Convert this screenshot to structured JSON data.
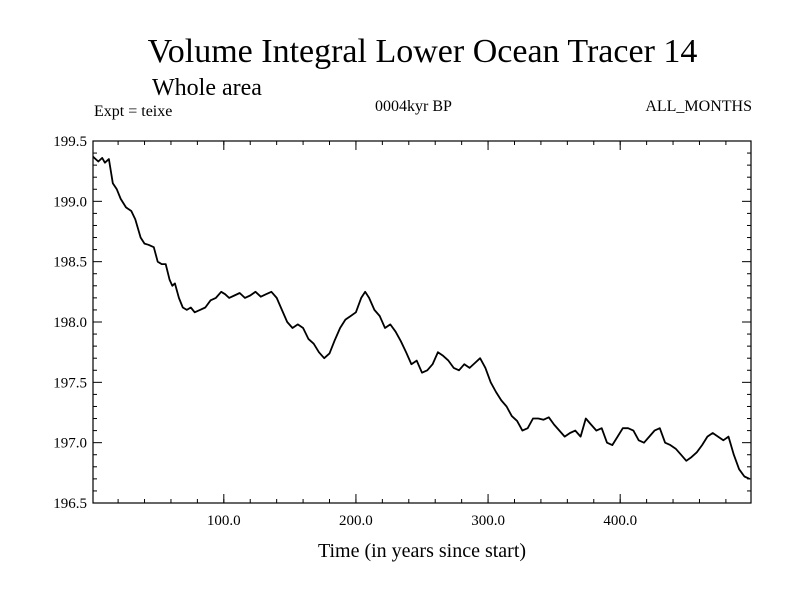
{
  "chart_data": {
    "type": "line",
    "title": "Volume Integral Lower Ocean Tracer 14",
    "subtitle": "Whole area",
    "annotations": {
      "left": "Expt = teixe",
      "center": "0004kyr BP",
      "right": "ALL_MONTHS"
    },
    "xlabel": "Time (in years since start)",
    "ylabel": "",
    "xlim": [
      1,
      499
    ],
    "ylim": [
      196.5,
      199.5
    ],
    "x_ticks": [
      100,
      200,
      300,
      400
    ],
    "x_tick_labels": [
      "100.0",
      "200.0",
      "300.0",
      "400.0"
    ],
    "y_ticks": [
      196.5,
      197.0,
      197.5,
      198.0,
      198.5,
      199.0,
      199.5
    ],
    "y_tick_labels": [
      "196.5",
      "197.0",
      "197.5",
      "198.0",
      "198.5",
      "199.0",
      "199.5"
    ],
    "grid": false,
    "series": [
      {
        "color": "#000000",
        "x": [
          1,
          5,
          8,
          10,
          13,
          16,
          19,
          22,
          26,
          30,
          33,
          37,
          40,
          43,
          47,
          50,
          53,
          56,
          59,
          61,
          63,
          66,
          69,
          72,
          75,
          78,
          82,
          86,
          90,
          94,
          98,
          101,
          104,
          108,
          112,
          116,
          120,
          124,
          128,
          132,
          136,
          140,
          144,
          148,
          152,
          156,
          160,
          164,
          168,
          172,
          176,
          180,
          184,
          188,
          192,
          196,
          200,
          204,
          207,
          210,
          214,
          218,
          222,
          226,
          230,
          234,
          238,
          242,
          246,
          250,
          254,
          258,
          262,
          266,
          270,
          274,
          278,
          282,
          286,
          290,
          294,
          298,
          302,
          306,
          310,
          314,
          318,
          322,
          326,
          330,
          334,
          338,
          342,
          346,
          350,
          354,
          358,
          362,
          366,
          370,
          374,
          378,
          382,
          386,
          390,
          394,
          398,
          402,
          406,
          410,
          414,
          418,
          422,
          426,
          430,
          434,
          438,
          442,
          446,
          450,
          454,
          458,
          462,
          466,
          470,
          474,
          478,
          482,
          486,
          490,
          494,
          498
        ],
        "y": [
          199.37,
          199.33,
          199.36,
          199.32,
          199.35,
          199.15,
          199.1,
          199.02,
          198.95,
          198.92,
          198.85,
          198.7,
          198.65,
          198.64,
          198.62,
          198.5,
          198.48,
          198.48,
          198.35,
          198.3,
          198.32,
          198.2,
          198.12,
          198.1,
          198.12,
          198.08,
          198.1,
          198.12,
          198.18,
          198.2,
          198.25,
          198.23,
          198.2,
          198.22,
          198.24,
          198.2,
          198.22,
          198.25,
          198.21,
          198.23,
          198.25,
          198.2,
          198.1,
          198.0,
          197.95,
          197.98,
          197.95,
          197.86,
          197.82,
          197.75,
          197.7,
          197.74,
          197.85,
          197.95,
          198.02,
          198.05,
          198.08,
          198.2,
          198.25,
          198.2,
          198.1,
          198.05,
          197.95,
          197.98,
          197.92,
          197.84,
          197.75,
          197.65,
          197.68,
          197.58,
          197.6,
          197.65,
          197.75,
          197.72,
          197.68,
          197.62,
          197.6,
          197.65,
          197.62,
          197.66,
          197.7,
          197.62,
          197.5,
          197.42,
          197.35,
          197.3,
          197.22,
          197.18,
          197.1,
          197.12,
          197.2,
          197.2,
          197.19,
          197.21,
          197.15,
          197.1,
          197.05,
          197.08,
          197.1,
          197.05,
          197.2,
          197.15,
          197.1,
          197.12,
          197.0,
          196.98,
          197.05,
          197.12,
          197.12,
          197.1,
          197.02,
          197.0,
          197.05,
          197.1,
          197.12,
          197.0,
          196.98,
          196.95,
          196.9,
          196.85,
          196.88,
          196.92,
          196.98,
          197.05,
          197.08,
          197.05,
          197.02,
          197.05,
          196.9,
          196.78,
          196.72,
          196.7
        ]
      }
    ]
  }
}
